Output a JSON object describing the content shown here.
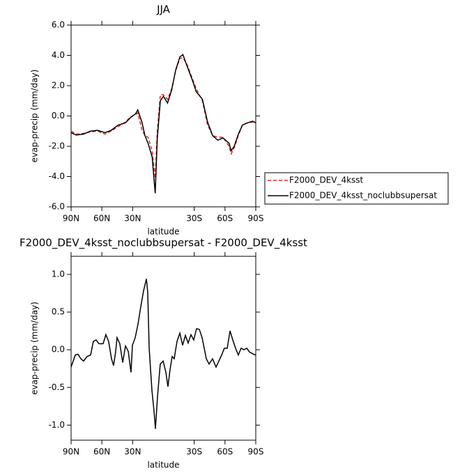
{
  "chart_data": [
    {
      "type": "line",
      "title": "JJA",
      "x_label": "latitude",
      "y_label": "evap-precip (mm/day)",
      "x": [
        90,
        85,
        78,
        71,
        64,
        57,
        51,
        44,
        37,
        32,
        27,
        25,
        21,
        18,
        15,
        11,
        8,
        6,
        3,
        0,
        -4,
        -8,
        -12,
        -16,
        -19,
        -23,
        -28,
        -32,
        -38,
        -43,
        -48,
        -53,
        -58,
        -64,
        -66,
        -69,
        -73,
        -77,
        -82,
        -87,
        -90
      ],
      "series": [
        {
          "name": "F2000_DEV_4ksst",
          "color": "#e8221c",
          "dash": "dashed",
          "values": [
            -1.0,
            -1.2,
            -1.15,
            -1.05,
            -1.0,
            -1.2,
            -1.0,
            -0.7,
            -0.4,
            -0.05,
            0.1,
            0.2,
            -0.9,
            -1.3,
            -1.4,
            -2.3,
            -4.1,
            -1.0,
            1.4,
            1.4,
            1.1,
            1.8,
            3.0,
            3.8,
            3.85,
            3.4,
            2.5,
            1.8,
            1.0,
            -0.6,
            -1.3,
            -1.4,
            -1.4,
            -2.0,
            -2.5,
            -2.1,
            -1.3,
            -0.6,
            -0.45,
            -0.4,
            -0.45
          ]
        },
        {
          "name": "F2000_DEV_4ksst_noclubbsupersat",
          "color": "#000000",
          "dash": "solid",
          "values": [
            -1.1,
            -1.26,
            -1.2,
            -1.0,
            -0.95,
            -1.1,
            -0.95,
            -0.6,
            -0.45,
            -0.1,
            0.15,
            0.4,
            -0.4,
            -1.3,
            -1.8,
            -2.7,
            -5.1,
            -1.5,
            1.0,
            1.3,
            0.85,
            1.7,
            3.05,
            3.9,
            4.05,
            3.3,
            2.4,
            1.6,
            1.1,
            -0.4,
            -1.3,
            -1.6,
            -1.45,
            -1.8,
            -2.3,
            -2.0,
            -1.2,
            -0.6,
            -0.45,
            -0.35,
            -0.45
          ]
        }
      ],
      "xlim": [
        90,
        -90
      ],
      "xticks": [
        {
          "value": 90,
          "label": "90N"
        },
        {
          "value": 60,
          "label": "60N"
        },
        {
          "value": 30,
          "label": "30N"
        },
        {
          "value": -30,
          "label": "30S"
        },
        {
          "value": -60,
          "label": "60S"
        },
        {
          "value": -90,
          "label": "90S"
        }
      ],
      "ylim": [
        -6,
        6
      ],
      "yticks": [
        {
          "value": 6,
          "label": "6.0"
        },
        {
          "value": 4,
          "label": "4.0"
        },
        {
          "value": 2,
          "label": "2.0"
        },
        {
          "value": 0,
          "label": "0.0"
        },
        {
          "value": -2,
          "label": "-2.0"
        },
        {
          "value": -4,
          "label": "-4.0"
        },
        {
          "value": -6,
          "label": "-6.0"
        }
      ],
      "legend": "outside-right"
    },
    {
      "type": "line",
      "title": "F2000_DEV_4ksst_noclubbsupersat - F2000_DEV_4ksst",
      "x_label": "latitude",
      "y_label": "evap-precip (mm/day)",
      "x": [
        90,
        85.9,
        83.2,
        80.5,
        77.8,
        74.4,
        71,
        68.3,
        65.6,
        62.8,
        58.8,
        56.1,
        53.4,
        50.6,
        48.6,
        46.6,
        45.2,
        42.5,
        39.7,
        37,
        34.3,
        31.6,
        30.2,
        27.5,
        24.8,
        22.1,
        19.4,
        16.6,
        15.3,
        13.9,
        11.2,
        9.2,
        7.8,
        5.8,
        3.1,
        0.3,
        -2.4,
        -4.4,
        -6.5,
        -8.5,
        -10.5,
        -13.2,
        -16,
        -18.7,
        -21.4,
        -24.1,
        -26.8,
        -29.5,
        -32.3,
        -35,
        -37.7,
        -41.8,
        -44.5,
        -47.9,
        -51.3,
        -54,
        -56.7,
        -59.4,
        -62.2,
        -64.9,
        -67.6,
        -70.3,
        -73,
        -75.7,
        -78.5,
        -81.2,
        -83.9,
        -88,
        -90
      ],
      "values": [
        -0.23,
        -0.07,
        -0.06,
        -0.12,
        -0.15,
        -0.09,
        -0.07,
        0.11,
        0.13,
        0.08,
        0.08,
        0.2,
        0.11,
        -0.12,
        -0.21,
        -0.03,
        0.16,
        0.08,
        -0.17,
        0.05,
        -0.02,
        -0.3,
        0.06,
        0.16,
        0.34,
        0.57,
        0.78,
        0.94,
        0.76,
        0.02,
        -0.54,
        -0.81,
        -1.05,
        -0.63,
        -0.19,
        -0.15,
        -0.3,
        -0.49,
        -0.26,
        -0.09,
        -0.12,
        0.11,
        0.22,
        0.06,
        0.19,
        0.09,
        0.2,
        0.13,
        0.28,
        0.27,
        0.16,
        -0.12,
        -0.19,
        -0.12,
        -0.23,
        -0.15,
        -0.07,
        0.02,
        0.02,
        0.25,
        0.13,
        0.02,
        -0.07,
        0.02,
        0,
        0.02,
        -0.03,
        -0.06,
        -0.07
      ],
      "color": "#000000",
      "xlim": [
        90,
        -90
      ],
      "xticks": [
        {
          "value": 90,
          "label": "90N"
        },
        {
          "value": 60,
          "label": "60N"
        },
        {
          "value": 30,
          "label": "30N"
        },
        {
          "value": -30,
          "label": "30S"
        },
        {
          "value": -60,
          "label": "60S"
        },
        {
          "value": -90,
          "label": "90S"
        }
      ],
      "ylim": [
        -1.2,
        1.24
      ],
      "yticks": [
        {
          "value": 1,
          "label": "1.0"
        },
        {
          "value": 0.5,
          "label": "0.5"
        },
        {
          "value": 0,
          "label": "0.0"
        },
        {
          "value": -0.5,
          "label": "-0.5"
        },
        {
          "value": -1,
          "label": "-1.0"
        }
      ]
    }
  ]
}
